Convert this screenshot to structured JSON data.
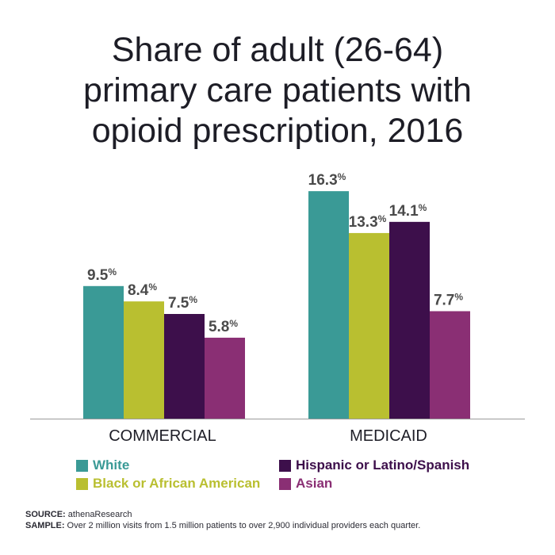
{
  "title_lines": [
    "Share of adult (26-64)",
    "primary care patients with",
    "opioid prescription, 2016"
  ],
  "colors": {
    "white": "#3a9a96",
    "black": "#b9bf30",
    "hispanic": "#3d0f4b",
    "asian": "#8a2f74",
    "text": "#1d1d26",
    "label": "#4a4a4a"
  },
  "legend": {
    "white": "White",
    "black": "Black or African American",
    "hispanic": "Hispanic or Latino/Spanish",
    "asian": "Asian"
  },
  "footer": {
    "source_label": "SOURCE:",
    "source_text": " athenaResearch",
    "sample_label": "SAMPLE:",
    "sample_text": " Over 2 million visits from 1.5 million patients to over 2,900 individual providers each quarter."
  },
  "chart_data": {
    "type": "bar",
    "categories": [
      "COMMERCIAL",
      "MEDICAID"
    ],
    "unit": "%",
    "series": [
      {
        "name": "White",
        "color_key": "white",
        "values": [
          9.5,
          16.3
        ]
      },
      {
        "name": "Black or African American",
        "color_key": "black",
        "values": [
          8.4,
          13.3
        ]
      },
      {
        "name": "Hispanic or Latino/Spanish",
        "color_key": "hispanic",
        "values": [
          7.5,
          14.1
        ]
      },
      {
        "name": "Asian",
        "color_key": "asian",
        "values": [
          5.8,
          7.7
        ]
      }
    ],
    "ylim": [
      0,
      17
    ]
  }
}
